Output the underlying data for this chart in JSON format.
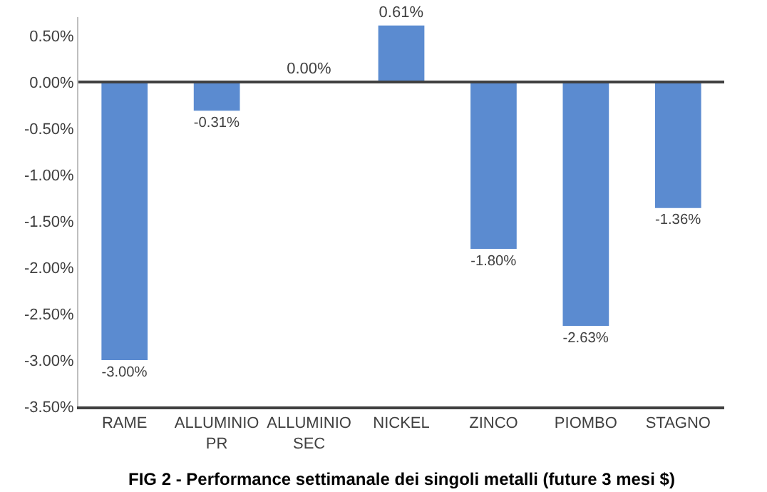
{
  "chart_data": {
    "type": "bar",
    "title": "FIG 2 - Performance settimanale dei singoli metalli (future 3 mesi $)",
    "categories": [
      "RAME",
      "ALLUMINIO PR",
      "ALLUMINIO SEC",
      "NICKEL",
      "ZINCO",
      "PIOMBO",
      "STAGNO"
    ],
    "values": [
      -3.0,
      -0.31,
      0.0,
      0.61,
      -1.8,
      -2.63,
      -1.36
    ],
    "value_labels": [
      "-3.00%",
      "-0.31%",
      "0.00%",
      "0.61%",
      "-1.80%",
      "-2.63%",
      "-1.36%"
    ],
    "color": "#5b8bd0",
    "ylim": [
      -3.5,
      0.7
    ],
    "ref_lines": [
      {
        "axis": "y",
        "value": 0,
        "color": "#404040"
      }
    ],
    "yticks": [
      {
        "value": 0.5,
        "label": "0.50%"
      },
      {
        "value": 0,
        "label": "0.00%"
      },
      {
        "value": -0.5,
        "label": "-0.50%"
      },
      {
        "value": -1,
        "label": "-1.00%"
      },
      {
        "value": -1.5,
        "label": "-1.50%"
      },
      {
        "value": -2,
        "label": "-2.00%"
      },
      {
        "value": -2.5,
        "label": "-2.50%"
      },
      {
        "value": -3,
        "label": "-3.00%"
      },
      {
        "value": -3.5,
        "label": "-3.50%"
      }
    ],
    "grid": false
  }
}
